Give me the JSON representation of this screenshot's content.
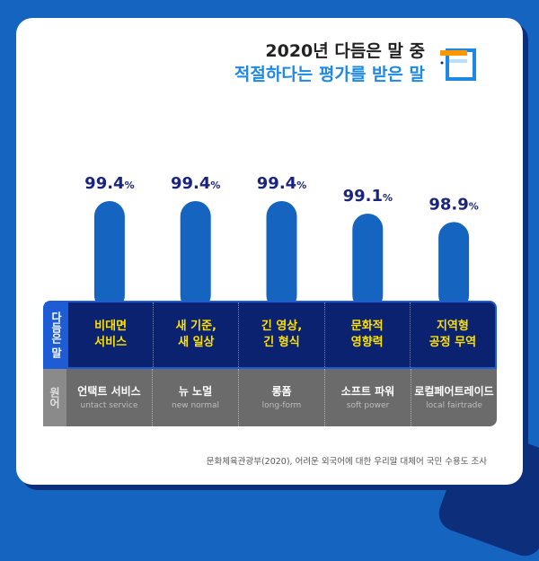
{
  "title_line1": "2020년 다듬은 말 중",
  "title_line2": "적절하다는 평가를 받은 말",
  "icon": "book-icon",
  "row_labels": {
    "native": "다듬은 말",
    "original": "원어"
  },
  "source": "문화체육관광부(2020), 어려운 외국어에 대한 우리말 대체어 국민 수용도 조사",
  "colors": {
    "bar": "#1565c0",
    "native_band": "#0a2270",
    "original_band": "#6b6b6b",
    "native_text": "#ffe000"
  },
  "chart_data": {
    "type": "bar",
    "categories": [
      "비대면 서비스",
      "새 기준, 새 일상",
      "긴 영상, 긴 형식",
      "문화적 영향력",
      "지역형 공정 무역"
    ],
    "values": [
      99.4,
      99.4,
      99.4,
      99.1,
      98.9
    ],
    "value_labels": [
      "99.4",
      "99.4",
      "99.4",
      "99.1",
      "98.9"
    ],
    "unit": "%",
    "ylim": [
      97,
      100
    ],
    "grid": false,
    "legend": "none",
    "native_terms": [
      "비대면\n서비스",
      "새 기준,\n새 일상",
      "긴 영상,\n긴 형식",
      "문화적\n영향력",
      "지역형\n공정 무역"
    ],
    "original_ko": [
      "언택트 서비스",
      "뉴 노멀",
      "롱폼",
      "소프트 파워",
      "로컬페어트레이드"
    ],
    "original_en": [
      "untact service",
      "new normal",
      "long-form",
      "soft power",
      "local fairtrade"
    ]
  }
}
